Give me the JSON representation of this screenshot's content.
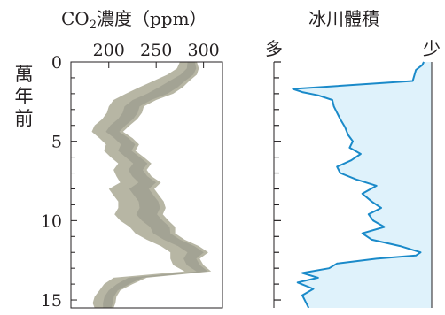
{
  "chart_data": [
    {
      "type": "area",
      "title": "CO₂濃度（ppm）",
      "title_parts": {
        "pre": "CO",
        "sub": "2",
        "post": "濃度（ppm）"
      },
      "ylabel": "萬年前",
      "xlim": [
        160,
        320
      ],
      "ylim": [
        0,
        15.5
      ],
      "y_inverted": true,
      "x_ticks": [
        200,
        250,
        300
      ],
      "x_tick_labels": [
        "200",
        "250",
        "300"
      ],
      "y_ticks": [
        0,
        5,
        10,
        15
      ],
      "y_tick_labels": [
        "0",
        "5",
        "10",
        "15"
      ],
      "colors": {
        "band": "#b7b6a4",
        "band_inner": "#949386",
        "axis": "#231f20"
      },
      "series": [
        {
          "y": [
            0.0,
            0.4,
            0.8,
            1.2,
            1.6,
            2.0,
            2.4,
            2.8,
            3.2,
            3.6,
            4.0,
            4.4,
            4.8,
            5.2,
            5.6,
            6.0,
            6.4,
            6.8,
            7.2,
            7.6,
            8.0,
            8.4,
            8.8,
            9.2,
            9.6,
            10.0,
            10.4,
            10.8,
            11.2,
            11.6,
            12.0,
            12.4,
            12.8,
            13.2,
            13.6,
            14.0,
            14.4,
            14.8,
            15.2,
            15.5
          ],
          "low": [
            275,
            272,
            262,
            247,
            232,
            218,
            205,
            200,
            198,
            193,
            185,
            182,
            190,
            197,
            195,
            202,
            210,
            205,
            208,
            212,
            200,
            205,
            210,
            210,
            206,
            212,
            222,
            228,
            240,
            255,
            265,
            265,
            268,
            280,
            205,
            195,
            190,
            185,
            183,
            185
          ],
          "high": [
            293,
            295,
            293,
            285,
            278,
            268,
            250,
            237,
            235,
            230,
            222,
            215,
            225,
            232,
            228,
            237,
            245,
            240,
            245,
            255,
            248,
            253,
            258,
            260,
            257,
            263,
            270,
            270,
            280,
            295,
            305,
            296,
            300,
            308,
            240,
            225,
            212,
            208,
            207,
            205
          ]
        }
      ]
    },
    {
      "type": "line",
      "title": "冰川體積",
      "x_axis_labels": {
        "left": "多",
        "right": "少"
      },
      "xlim": [
        0,
        1
      ],
      "ylim": [
        0,
        15.5
      ],
      "y_inverted": true,
      "colors": {
        "line": "#1a8ac9",
        "fill": "#dff2fb",
        "axis": "#231f20"
      },
      "series": [
        {
          "y": [
            0.0,
            0.2,
            0.5,
            1.2,
            1.7,
            1.9,
            2.1,
            2.4,
            2.8,
            3.2,
            3.6,
            4.1,
            4.6,
            5.0,
            5.4,
            5.8,
            6.2,
            6.6,
            7.0,
            7.4,
            7.8,
            8.3,
            8.8,
            9.2,
            9.6,
            10.0,
            10.4,
            10.8,
            11.2,
            11.6,
            12.0,
            12.2,
            12.4,
            12.7,
            13.0,
            13.3,
            13.6,
            13.9,
            14.3,
            14.7,
            15.1,
            15.5
          ],
          "x": [
            0.95,
            0.94,
            0.9,
            0.88,
            0.12,
            0.18,
            0.28,
            0.37,
            0.38,
            0.4,
            0.42,
            0.45,
            0.47,
            0.5,
            0.48,
            0.55,
            0.49,
            0.4,
            0.42,
            0.52,
            0.65,
            0.56,
            0.62,
            0.68,
            0.6,
            0.63,
            0.7,
            0.56,
            0.62,
            0.8,
            0.93,
            0.9,
            0.65,
            0.4,
            0.35,
            0.18,
            0.28,
            0.15,
            0.25,
            0.18,
            0.2,
            0.22
          ]
        }
      ]
    }
  ]
}
